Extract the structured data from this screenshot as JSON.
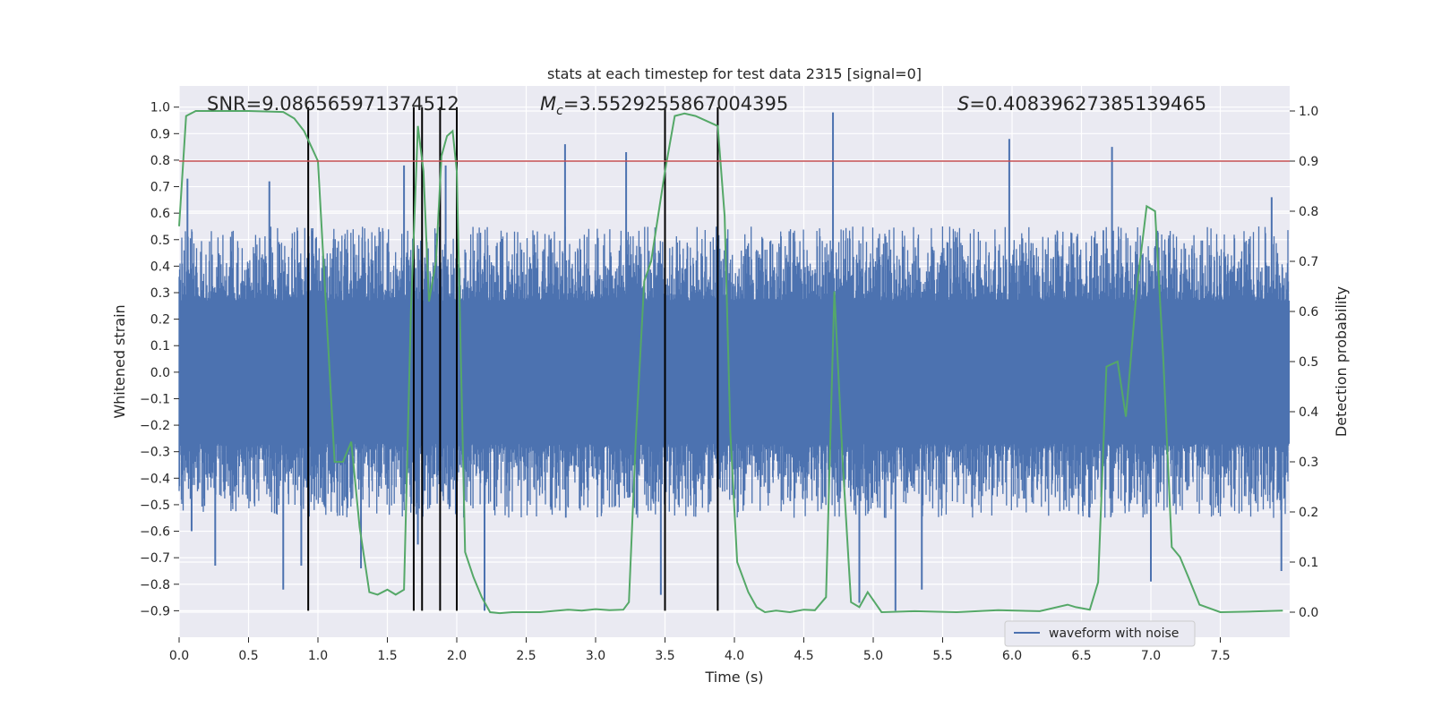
{
  "chart_data": {
    "type": "line",
    "title": "stats at each timestep for test data 2315 [signal=0]",
    "xlabel": "Time (s)",
    "ylabel": "Whitened strain",
    "y2label": "Detection probability",
    "xlim": [
      0.0,
      8.0
    ],
    "ylim": [
      -1.0,
      1.08
    ],
    "y2lim": [
      -0.05,
      1.05
    ],
    "x_ticks": [
      "0.0",
      "0.5",
      "1.0",
      "1.5",
      "2.0",
      "2.5",
      "3.0",
      "3.5",
      "4.0",
      "4.5",
      "5.0",
      "5.5",
      "6.0",
      "6.5",
      "7.0",
      "7.5"
    ],
    "y_ticks": [
      "1.0",
      "0.9",
      "0.8",
      "0.7",
      "0.6",
      "0.5",
      "0.4",
      "0.3",
      "0.2",
      "0.1",
      "0.0",
      "−0.1",
      "−0.2",
      "−0.3",
      "−0.4",
      "−0.5",
      "−0.6",
      "−0.7",
      "−0.8",
      "−0.9"
    ],
    "y2_ticks": [
      "1.0",
      "0.9",
      "0.8",
      "0.7",
      "0.6",
      "0.5",
      "0.4",
      "0.3",
      "0.2",
      "0.1",
      "0.0"
    ],
    "grid": true,
    "legend_position": "bottom-right",
    "annotations": {
      "snr": "SNR=9.086565971374512",
      "mc_symbol": "M",
      "mc_sub": "c",
      "mc_value": "=3.5529255867004395",
      "s_symbol": "S",
      "s_value": "=0.40839627385139465"
    },
    "threshold": 0.9,
    "vertical_lines": [
      0.93,
      1.69,
      1.75,
      1.88,
      2.0,
      3.5,
      3.88
    ],
    "series": [
      {
        "name": "waveform with noise",
        "color": "#4c72b0",
        "kind": "noise_envelope",
        "core_amplitude": 0.27,
        "typical_peak": 0.5,
        "peaks": [
          {
            "x": 0.06,
            "y": 0.73
          },
          {
            "x": 0.09,
            "y": -0.6
          },
          {
            "x": 0.65,
            "y": 0.72
          },
          {
            "x": 0.75,
            "y": -0.82
          },
          {
            "x": 0.88,
            "y": -0.73
          },
          {
            "x": 0.26,
            "y": -0.73
          },
          {
            "x": 1.31,
            "y": -0.74
          },
          {
            "x": 1.62,
            "y": 0.78
          },
          {
            "x": 1.72,
            "y": -0.65
          },
          {
            "x": 1.92,
            "y": 0.78
          },
          {
            "x": 2.2,
            "y": -0.9
          },
          {
            "x": 2.78,
            "y": 0.86
          },
          {
            "x": 3.22,
            "y": 0.83
          },
          {
            "x": 3.47,
            "y": -0.84
          },
          {
            "x": 3.88,
            "y": -0.86
          },
          {
            "x": 4.71,
            "y": 0.98
          },
          {
            "x": 4.9,
            "y": -0.87
          },
          {
            "x": 5.16,
            "y": -0.9
          },
          {
            "x": 5.35,
            "y": -0.82
          },
          {
            "x": 5.98,
            "y": 0.88
          },
          {
            "x": 6.72,
            "y": 0.85
          },
          {
            "x": 7.94,
            "y": -0.75
          },
          {
            "x": 7.87,
            "y": 0.66
          },
          {
            "x": 7.0,
            "y": -0.79
          }
        ]
      },
      {
        "name": "",
        "color": "#55a868",
        "axis": "right",
        "x": [
          0.0,
          0.05,
          0.12,
          0.25,
          0.5,
          0.75,
          0.83,
          0.9,
          0.95,
          1.0,
          1.06,
          1.12,
          1.18,
          1.24,
          1.3,
          1.37,
          1.43,
          1.5,
          1.56,
          1.62,
          1.67,
          1.72,
          1.76,
          1.8,
          1.85,
          1.89,
          1.93,
          1.97,
          2.0,
          2.06,
          2.12,
          2.18,
          2.24,
          2.31,
          2.4,
          2.6,
          2.8,
          2.9,
          3.0,
          3.1,
          3.2,
          3.24,
          3.29,
          3.35,
          3.4,
          3.5,
          3.57,
          3.64,
          3.72,
          3.8,
          3.88,
          3.93,
          3.97,
          4.02,
          4.1,
          4.16,
          4.22,
          4.3,
          4.4,
          4.5,
          4.58,
          4.66,
          4.72,
          4.78,
          4.84,
          4.9,
          4.96,
          5.06,
          5.3,
          5.6,
          5.9,
          6.2,
          6.4,
          6.46,
          6.56,
          6.62,
          6.68,
          6.76,
          6.82,
          6.9,
          6.97,
          7.03,
          7.09,
          7.15,
          7.21,
          7.27,
          7.35,
          7.5,
          7.7,
          7.95
        ],
        "values": [
          0.77,
          0.99,
          1.0,
          1.0,
          1.0,
          0.998,
          0.985,
          0.96,
          0.93,
          0.9,
          0.6,
          0.3,
          0.3,
          0.34,
          0.17,
          0.04,
          0.035,
          0.045,
          0.035,
          0.045,
          0.6,
          0.97,
          0.88,
          0.62,
          0.7,
          0.91,
          0.95,
          0.96,
          0.88,
          0.12,
          0.07,
          0.03,
          0.0,
          -0.002,
          0.0,
          0.0,
          0.005,
          0.003,
          0.006,
          0.004,
          0.005,
          0.02,
          0.35,
          0.66,
          0.7,
          0.88,
          0.99,
          0.995,
          0.99,
          0.98,
          0.97,
          0.79,
          0.36,
          0.1,
          0.04,
          0.01,
          0.0,
          0.003,
          0.0,
          0.005,
          0.004,
          0.03,
          0.64,
          0.3,
          0.02,
          0.01,
          0.04,
          0.0,
          0.002,
          0.0,
          0.004,
          0.002,
          0.015,
          0.01,
          0.005,
          0.06,
          0.49,
          0.5,
          0.39,
          0.65,
          0.81,
          0.8,
          0.5,
          0.13,
          0.11,
          0.07,
          0.015,
          0.0,
          0.001,
          0.003
        ]
      },
      {
        "name": "",
        "color": "#c44e52",
        "kind": "threshold_line"
      }
    ]
  }
}
